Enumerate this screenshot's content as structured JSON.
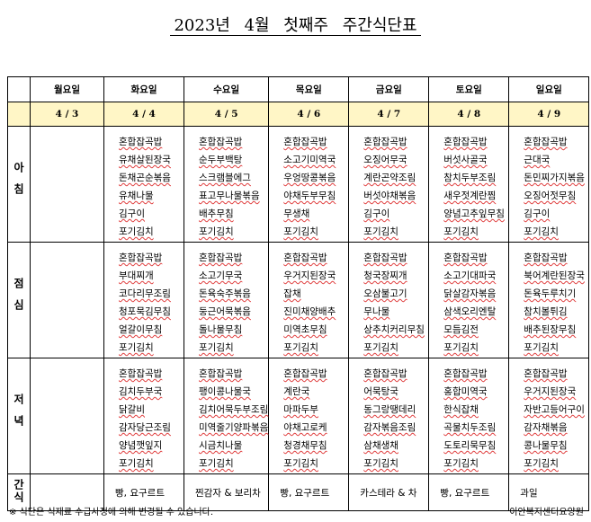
{
  "header": {
    "title": "2023년 4월 첫째주 주간식단표"
  },
  "table": {
    "days": [
      "월요일",
      "화요일",
      "수요일",
      "목요일",
      "금요일",
      "토요일",
      "일요일"
    ],
    "dates": [
      "4 / 3",
      "4 / 4",
      "4 / 5",
      "4 / 6",
      "4 / 7",
      "4 / 8",
      "4 / 9"
    ],
    "meals": [
      {
        "label": "아침",
        "cells": [
          [],
          [
            "혼합잡곡밥",
            "유채살된장국",
            "돈채곤순볶음",
            "유채나물",
            "김구이",
            "포기김치"
          ],
          [
            "혼합잡곡밥",
            "순두부백탕",
            "스크램블에그",
            "표고무나물볶음",
            "배추무침",
            "포기김치"
          ],
          [
            "혼합잡곡밥",
            "소고기미역국",
            "우엉땅콩볶음",
            "야채두부무침",
            "무생채",
            "포기김치"
          ],
          [
            "혼합잡곡밥",
            "오징어무국",
            "계란곤약조림",
            "버섯야채볶음",
            "김구이",
            "포기김치"
          ],
          [
            "혼합잡곡밥",
            "버섯사골국",
            "참치두부조림",
            "새우젓계란찜",
            "양념고추잎무침",
            "포기김치"
          ],
          [
            "혼합잡곡밥",
            "근대국",
            "돈민찌가지볶음",
            "오징어젓무침",
            "김구이",
            "포기김치"
          ]
        ]
      },
      {
        "label": "점심",
        "cells": [
          [],
          [
            "혼합잡곡밥",
            "부대찌개",
            "코다리무조림",
            "청포묵김무침",
            "얼갈이무침",
            "포기김치"
          ],
          [
            "혼합잡곡밥",
            "소고기무국",
            "돈육숙주볶음",
            "둥근어묵볶음",
            "돌나물무침",
            "포기김치"
          ],
          [
            "혼합잡곡밥",
            "우거지된장국",
            "잡채",
            "진미채양배추",
            "미역초무침",
            "포기김치"
          ],
          [
            "혼합잡곡밥",
            "청국장찌개",
            "오삼불고기",
            "무나물",
            "상추치커리무침",
            "포기김치"
          ],
          [
            "혼합잡곡밥",
            "소고기대파국",
            "닭살감자볶음",
            "삼색오리엔탈",
            "모듬김전",
            "포기김치"
          ],
          [
            "혼합잡곡밥",
            "북어계란된장국",
            "돈육두루치기",
            "참치볼튀김",
            "배추된장무침",
            "포기김치"
          ]
        ]
      },
      {
        "label": "저녁",
        "cells": [
          [],
          [
            "혼합잡곡밥",
            "김치두부국",
            "닭갈비",
            "감자당근조림",
            "양념깻잎지",
            "포기김치"
          ],
          [
            "혼합잡곡밥",
            "팽이콩나물국",
            "김치어묵두부조림",
            "미역줄기양파볶음",
            "시금치나물",
            "포기김치"
          ],
          [
            "혼합잡곡밥",
            "계란국",
            "마파두부",
            "야채고로케",
            "청경채무침",
            "포기김치"
          ],
          [
            "혼합잡곡밥",
            "어묵탕국",
            "동그랑땡데리",
            "감자볶음조림",
            "삼채생채",
            "포기김치"
          ],
          [
            "혼합잡곡밥",
            "홍합미역국",
            "한식잡채",
            "곡물치두조림",
            "도토리묵무침",
            "포기김치"
          ],
          [
            "혼합잡곡밥",
            "우거지된장국",
            "자반고등어구이",
            "감자채볶음",
            "콩나물무침",
            "포기김치"
          ]
        ]
      }
    ],
    "snack": {
      "label": "간식",
      "cells": [
        null,
        "빵, 요구르트",
        "찐감자 & 보리차",
        "빵, 요구르트",
        "카스테라 & 차",
        "빵, 요구르트",
        "과일"
      ]
    }
  },
  "footer": {
    "note": "※ 식단은 식재료 수급사정에 의해 변경될 수 있습니다.",
    "organization": "이안복지센터요양원"
  }
}
